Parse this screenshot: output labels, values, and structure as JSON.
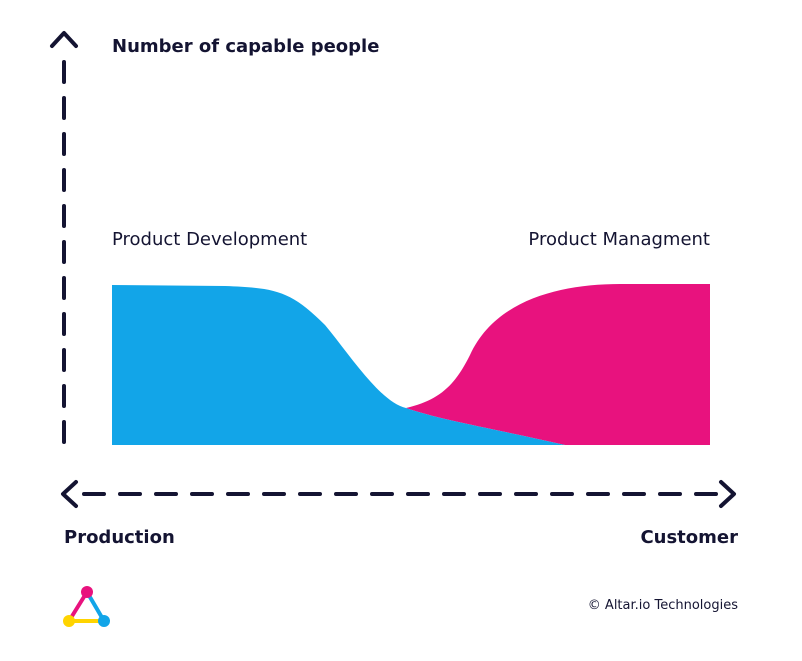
{
  "diagram": {
    "y_axis_title": "Number of capable people",
    "x_axis_left_label": "Production",
    "x_axis_right_label": "Customer",
    "series": [
      {
        "name": "Product Development",
        "color": "#12A5E8"
      },
      {
        "name": "Product Managment",
        "color": "#E8127E"
      }
    ],
    "axis_color": "#141432"
  },
  "footer": {
    "copyright": "© Altar.io Technologies",
    "logo_colors": [
      "#E8127E",
      "#12A5E8",
      "#FFD400"
    ]
  }
}
